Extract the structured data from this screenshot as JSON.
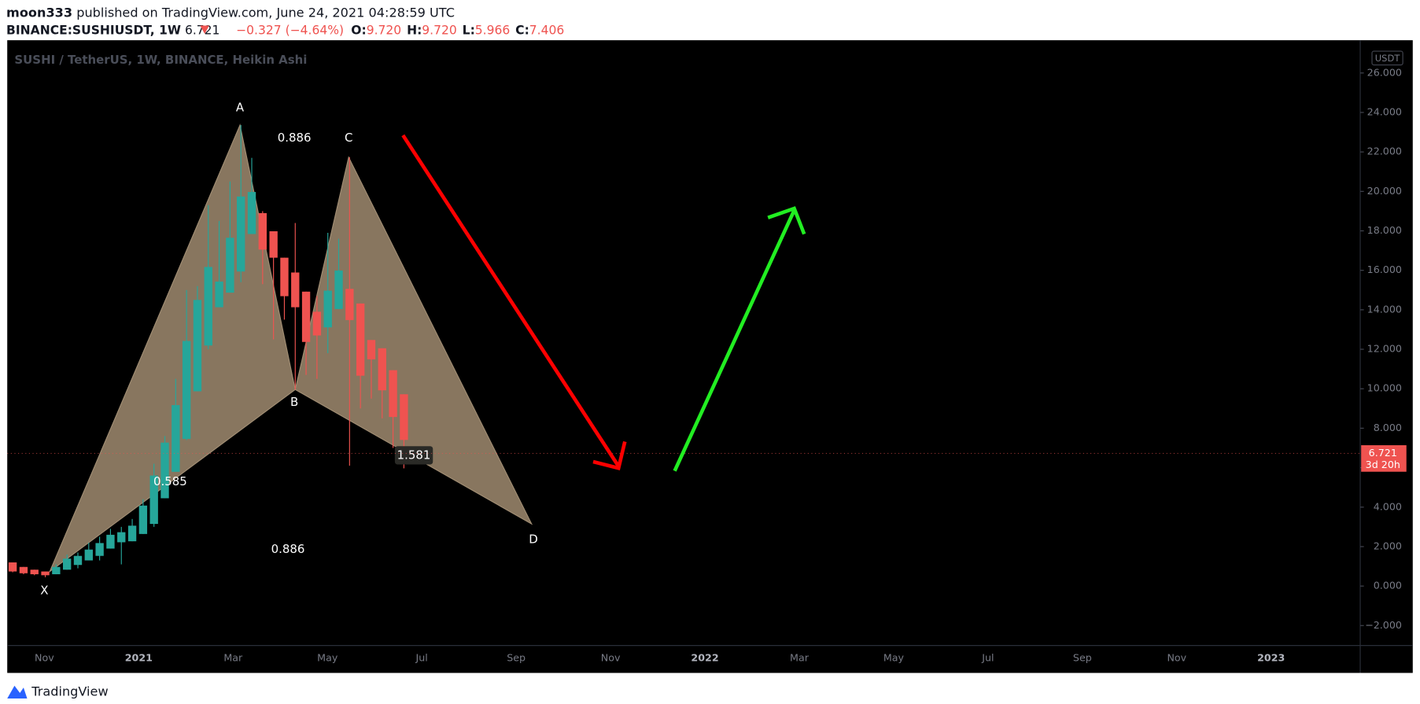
{
  "header": {
    "author": "moon333",
    "published": "published on TradingView.com, June 24, 2021 04:28:59 UTC",
    "symbol": "BINANCE:SUSHIUSDT, 1W",
    "last": "6.721",
    "change": "−0.327 (−4.64%)",
    "ohlc": [
      {
        "key": "O:",
        "value": "9.720"
      },
      {
        "key": "H:",
        "value": "9.720"
      },
      {
        "key": "L:",
        "value": "5.966"
      },
      {
        "key": "C:",
        "value": "7.406"
      }
    ]
  },
  "footer": {
    "brand": "TradingView"
  },
  "chart_data": {
    "type": "candlestick",
    "title": "SUSHI / TetherUS, 1W, BINANCE, Heikin Ashi",
    "currency": "USDT",
    "up_color": "#26a69a",
    "down_color": "#ef5350",
    "ylim": [
      -3.01,
      27.66
    ],
    "yticks": [
      {
        "value": -2,
        "label": "−2.000"
      },
      {
        "value": 0,
        "label": "0.000"
      },
      {
        "value": 2,
        "label": "2.000"
      },
      {
        "value": 4,
        "label": "4.000"
      },
      {
        "value": 6,
        "label": "6.000"
      },
      {
        "value": 8,
        "label": "8.000"
      },
      {
        "value": 10,
        "label": "10.000"
      },
      {
        "value": 12,
        "label": "12.000"
      },
      {
        "value": 14,
        "label": "14.000"
      },
      {
        "value": 16,
        "label": "16.000"
      },
      {
        "value": 18,
        "label": "18.000"
      },
      {
        "value": 20,
        "label": "20.000"
      },
      {
        "value": 22,
        "label": "22.000"
      },
      {
        "value": 24,
        "label": "24.000"
      },
      {
        "value": 26,
        "label": "26.000"
      }
    ],
    "xticks": [
      "Nov",
      "2021",
      "Mar",
      "May",
      "Jul",
      "Sep",
      "Nov",
      "2022",
      "Mar",
      "May",
      "Jul",
      "Sep",
      "Nov",
      "2023"
    ],
    "candles": {
      "open": [
        1.2,
        0.97,
        0.83,
        0.74,
        0.6,
        0.83,
        1.07,
        1.3,
        1.53,
        1.9,
        2.22,
        2.27,
        2.64,
        3.15,
        4.45,
        5.79,
        7.46,
        9.87,
        12.19,
        14.13,
        14.87,
        15.94,
        17.84,
        18.9,
        17.98,
        16.64,
        15.89,
        14.92,
        13.9,
        13.11,
        14.04,
        15.06,
        14.32,
        12.47,
        12.05,
        10.94,
        9.72
      ],
      "high": [
        1.2,
        0.97,
        0.83,
        0.74,
        1.1,
        1.6,
        1.7,
        2.2,
        2.5,
        2.9,
        3.0,
        3.4,
        4.4,
        6.2,
        7.6,
        10.5,
        15.0,
        15.2,
        19.3,
        18.5,
        20.5,
        23.36,
        21.7,
        19.0,
        17.98,
        16.64,
        18.4,
        14.92,
        14.7,
        17.9,
        17.6,
        21.73,
        14.32,
        12.47,
        12.05,
        10.94,
        9.72
      ],
      "low": [
        0.7,
        0.6,
        0.55,
        0.45,
        0.6,
        0.83,
        0.9,
        1.3,
        1.3,
        1.9,
        1.1,
        2.27,
        2.64,
        3.0,
        4.45,
        5.79,
        7.4,
        9.87,
        12.0,
        14.13,
        14.87,
        15.4,
        17.84,
        15.3,
        12.5,
        13.5,
        9.96,
        10.7,
        10.5,
        11.8,
        14.04,
        6.1,
        9.0,
        9.5,
        8.5,
        7.0,
        5.966
      ],
      "close": [
        0.74,
        0.65,
        0.6,
        0.55,
        0.97,
        1.39,
        1.53,
        1.85,
        2.18,
        2.6,
        2.73,
        3.06,
        4.08,
        5.6,
        7.27,
        9.17,
        12.42,
        14.5,
        16.17,
        15.43,
        17.65,
        19.74,
        19.97,
        17.05,
        16.64,
        14.69,
        14.13,
        12.37,
        12.7,
        14.97,
        15.99,
        13.48,
        10.66,
        11.49,
        9.92,
        8.57,
        7.406
      ]
    },
    "last_price": {
      "value": 6.721,
      "label": "6.721"
    },
    "countdown": "3d 20h",
    "pattern": {
      "points": [
        {
          "label": "X",
          "value": 0.74
        },
        {
          "label": "A",
          "value": 23.36
        },
        {
          "label": "B",
          "value": 9.96
        },
        {
          "label": "C",
          "value": 21.73
        },
        {
          "label": "D",
          "value": 3.15
        }
      ],
      "ratios": [
        "0.886",
        "0.585",
        "1.581",
        "0.886"
      ]
    }
  }
}
